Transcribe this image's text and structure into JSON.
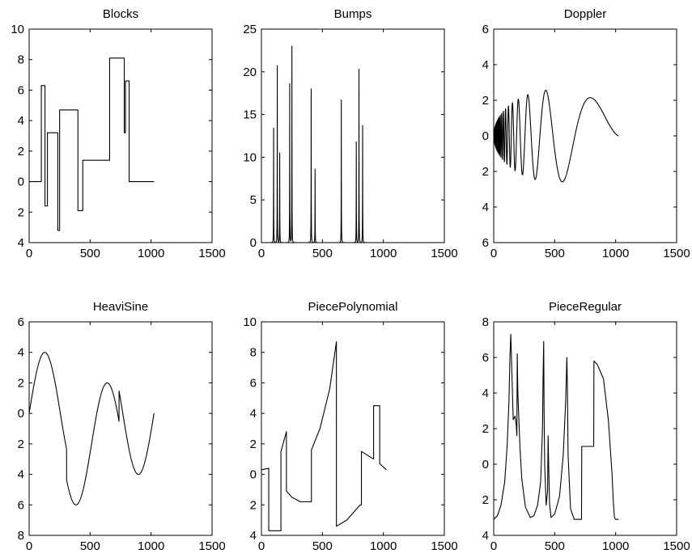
{
  "chart_data": [
    {
      "type": "line",
      "title": "Blocks",
      "xlim": [
        0,
        1500
      ],
      "ylim": [
        -4,
        10
      ],
      "x_ticks": [
        0,
        500,
        1000,
        1500
      ],
      "x_tick_labels": [
        "0",
        "500",
        "1000",
        "1500"
      ],
      "y_ticks": [
        10,
        8,
        6,
        4,
        2,
        0,
        -2,
        -4
      ],
      "y_tick_labels": [
        "10",
        "8",
        "6",
        "4",
        "2",
        "0",
        "2",
        "4"
      ],
      "series": [
        {
          "x": [
            0,
            100,
            100,
            130,
            130,
            150,
            150,
            200,
            200,
            235,
            235,
            250,
            250,
            400,
            400,
            440,
            440,
            660,
            660,
            780,
            780,
            790,
            790,
            820,
            820,
            1024
          ],
          "y": [
            0,
            0,
            6.3,
            6.3,
            -1.6,
            -1.6,
            3.2,
            3.2,
            3.2,
            3.2,
            -3.2,
            -3.2,
            4.7,
            4.7,
            -1.9,
            -1.9,
            1.4,
            1.4,
            8.1,
            8.1,
            3.2,
            3.2,
            6.6,
            6.6,
            0,
            0
          ]
        }
      ]
    },
    {
      "type": "line",
      "title": "Bumps",
      "xlim": [
        0,
        1500
      ],
      "ylim": [
        0,
        25
      ],
      "x_ticks": [
        0,
        500,
        1000,
        1500
      ],
      "x_tick_labels": [
        "0",
        "500",
        "1000",
        "1500"
      ],
      "y_ticks": [
        25,
        20,
        15,
        10,
        5,
        0
      ],
      "y_tick_labels": [
        "25",
        "20",
        "15",
        "10",
        "5",
        "0"
      ],
      "peaks": [
        {
          "x": 100,
          "height": 13.4
        },
        {
          "x": 130,
          "height": 20.7
        },
        {
          "x": 150,
          "height": 10.5
        },
        {
          "x": 232,
          "height": 18.6
        },
        {
          "x": 250,
          "height": 23.0
        },
        {
          "x": 408,
          "height": 18.0
        },
        {
          "x": 440,
          "height": 8.6
        },
        {
          "x": 655,
          "height": 16.7
        },
        {
          "x": 778,
          "height": 11.8
        },
        {
          "x": 800,
          "height": 20.3
        },
        {
          "x": 830,
          "height": 13.7
        }
      ]
    },
    {
      "type": "line",
      "title": "Doppler",
      "xlim": [
        0,
        1500
      ],
      "ylim": [
        -6,
        6
      ],
      "x_ticks": [
        0,
        500,
        1000,
        1500
      ],
      "x_tick_labels": [
        "0",
        "500",
        "1000",
        "1500"
      ],
      "y_ticks": [
        6,
        4,
        2,
        0,
        -2,
        -4,
        -6
      ],
      "y_tick_labels": [
        "6",
        "4",
        "2",
        "0",
        "2",
        "4",
        "6"
      ],
      "function": "amplitude 5.2 * sqrt(t(1-t)) * sin(2.1*pi/(t+0.05)), t = x/1024"
    },
    {
      "type": "line",
      "title": "HeaviSine",
      "xlim": [
        0,
        1500
      ],
      "ylim": [
        -8,
        6
      ],
      "x_ticks": [
        0,
        500,
        1000,
        1500
      ],
      "x_tick_labels": [
        "0",
        "500",
        "1000",
        "1500"
      ],
      "y_ticks": [
        6,
        4,
        2,
        0,
        -2,
        -4,
        -6,
        -8
      ],
      "y_tick_labels": [
        "6",
        "4",
        "2",
        "0",
        "2",
        "4",
        "6",
        "8"
      ],
      "function": "4 sin(4 pi t) - sign(t - 0.3) - sign(0.72 - t), t = x/1024"
    },
    {
      "type": "line",
      "title": "PiecePolynomial",
      "xlim": [
        0,
        1500
      ],
      "ylim": [
        -4,
        10
      ],
      "x_ticks": [
        0,
        500,
        1000,
        1500
      ],
      "x_tick_labels": [
        "0",
        "500",
        "1000",
        "1500"
      ],
      "y_ticks": [
        10,
        8,
        6,
        4,
        2,
        0,
        -2,
        -4
      ],
      "y_tick_labels": [
        "10",
        "8",
        "6",
        "4",
        "2",
        "0",
        "2",
        "4"
      ],
      "series": [
        {
          "x": [
            0,
            60,
            60,
            160,
            160,
            205,
            205,
            250,
            320,
            400,
            410,
            410,
            480,
            560,
            615,
            615,
            700,
            810,
            820,
            820,
            920,
            920,
            970,
            970,
            1024
          ],
          "y": [
            0.3,
            0.4,
            -3.7,
            -3.7,
            1.5,
            2.8,
            -1.1,
            -1.5,
            -1.8,
            -1.8,
            -1.8,
            1.6,
            3.0,
            5.6,
            8.7,
            -3.4,
            -3.0,
            -2.0,
            -2.0,
            1.5,
            1.0,
            4.5,
            4.5,
            0.7,
            0.3
          ]
        }
      ]
    },
    {
      "type": "line",
      "title": "PieceRegular",
      "xlim": [
        0,
        1500
      ],
      "ylim": [
        -4,
        8
      ],
      "x_ticks": [
        0,
        500,
        1000,
        1500
      ],
      "x_tick_labels": [
        "0",
        "500",
        "1000",
        "1500"
      ],
      "y_ticks": [
        8,
        6,
        4,
        2,
        0,
        -2,
        -4
      ],
      "y_tick_labels": [
        "8",
        "6",
        "4",
        "2",
        "0",
        "2",
        "4"
      ],
      "series": [
        {
          "x": [
            0,
            30,
            60,
            90,
            110,
            125,
            133,
            140,
            160,
            175,
            185,
            190,
            193,
            198,
            215,
            230,
            260,
            300,
            330,
            360,
            385,
            400,
            405,
            410,
            413,
            418,
            430,
            442,
            446,
            450,
            458,
            470,
            500,
            540,
            570,
            590,
            600,
            604,
            610,
            630,
            660,
            690,
            720,
            722,
            820,
            822,
            850,
            900,
            940,
            970,
            980,
            990,
            1000,
            1024
          ],
          "y": [
            -3.1,
            -2.9,
            -2.3,
            -1.0,
            1.0,
            3.5,
            6.0,
            7.3,
            2.5,
            2.7,
            2.2,
            1.6,
            6.2,
            4.0,
            1.0,
            -0.8,
            -2.4,
            -3.0,
            -2.9,
            -2.3,
            -1.0,
            2.0,
            5.0,
            6.9,
            3.0,
            0.0,
            -2.3,
            -1.5,
            1.6,
            0.2,
            -2.2,
            -3.0,
            -2.8,
            -1.8,
            0.5,
            3.5,
            6.0,
            4.5,
            0.5,
            -2.5,
            -3.1,
            -3.1,
            -3.1,
            1.0,
            1.0,
            5.8,
            5.6,
            4.8,
            2.5,
            -0.5,
            -2.0,
            -3.0,
            -3.1,
            -3.1
          ]
        }
      ]
    }
  ]
}
